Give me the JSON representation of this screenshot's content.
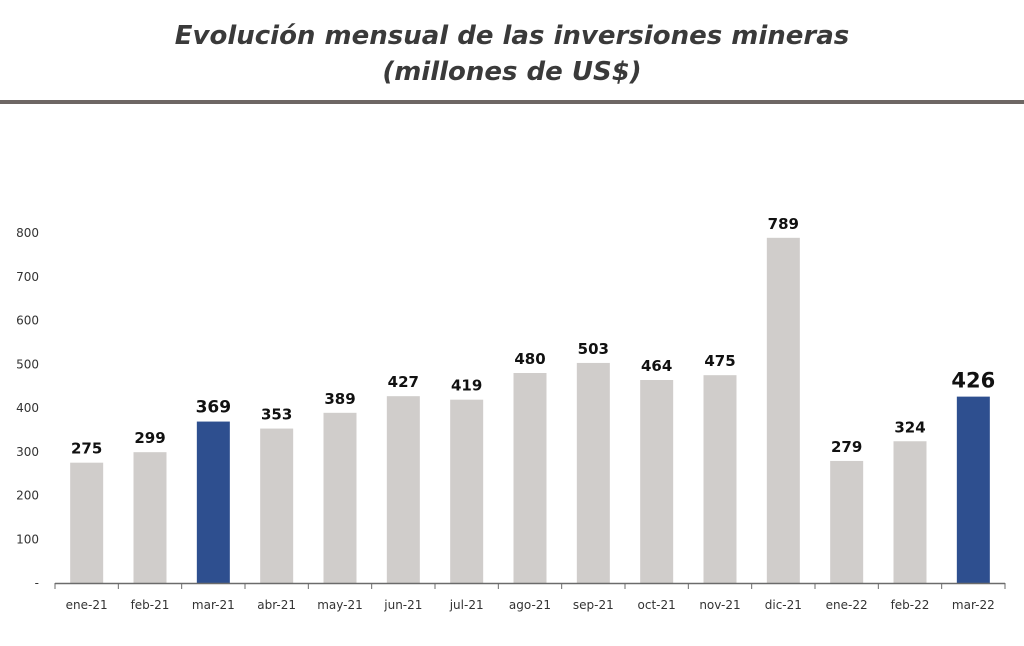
{
  "header": {
    "title_line1": "Evolución mensual de las inversiones mineras",
    "title_line2": "(millones de US$)"
  },
  "colors": {
    "default_bar": "#d0cdcb",
    "highlight_bar": "#2e4f8f",
    "axis": "#6b6b6b",
    "rule": "#6e6764"
  },
  "chart_data": {
    "type": "bar",
    "title": "Evolución mensual de las inversiones mineras (millones de US$)",
    "categories": [
      "ene-21",
      "feb-21",
      "mar-21",
      "abr-21",
      "may-21",
      "jun-21",
      "jul-21",
      "ago-21",
      "sep-21",
      "oct-21",
      "nov-21",
      "dic-21",
      "ene-22",
      "feb-22",
      "mar-22"
    ],
    "values": [
      275,
      299,
      369,
      353,
      389,
      427,
      419,
      480,
      503,
      464,
      475,
      789,
      279,
      324,
      426
    ],
    "highlighted": [
      "mar-21",
      "mar-22"
    ],
    "y_ticks": [
      "-",
      "100",
      "200",
      "300",
      "400",
      "500",
      "600",
      "700",
      "800"
    ],
    "ylim": [
      0,
      800
    ],
    "grid": false,
    "legend": "none",
    "data_labels": true
  }
}
